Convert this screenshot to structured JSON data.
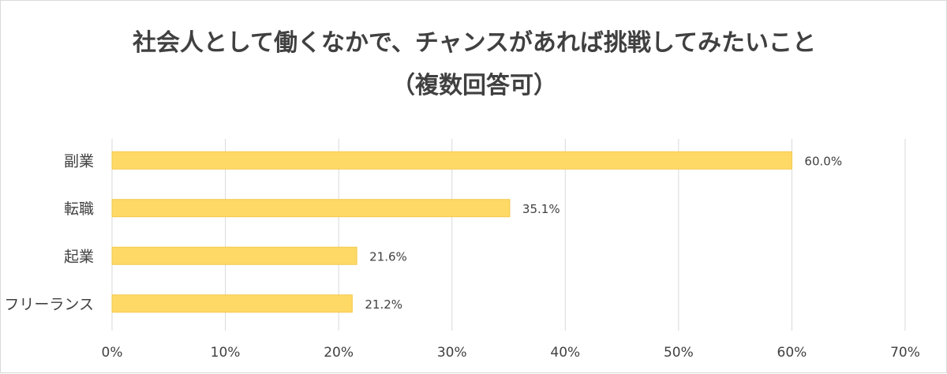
{
  "chart_data": {
    "type": "bar",
    "orientation": "horizontal",
    "title_line1": "社会人として働くなかで、チャンスがあれば挑戦してみたいこと",
    "title_line2": "（複数回答可）",
    "categories": [
      "副業",
      "転職",
      "起業",
      "フリーランス"
    ],
    "values": [
      60.0,
      35.1,
      21.6,
      21.2
    ],
    "data_labels": [
      "60.0%",
      "35.1%",
      "21.6%",
      "21.2%"
    ],
    "xlim": [
      0,
      70
    ],
    "xticks": [
      0,
      10,
      20,
      30,
      40,
      50,
      60,
      70
    ],
    "xtick_labels": [
      "0%",
      "10%",
      "20%",
      "30%",
      "40%",
      "50%",
      "60%",
      "70%"
    ],
    "grid": true,
    "legend": "none",
    "bar_color": "#FFD966",
    "bar_edge_color": "#F2C94C",
    "grid_color": "#d9d9d9",
    "text_color": "#404040"
  }
}
